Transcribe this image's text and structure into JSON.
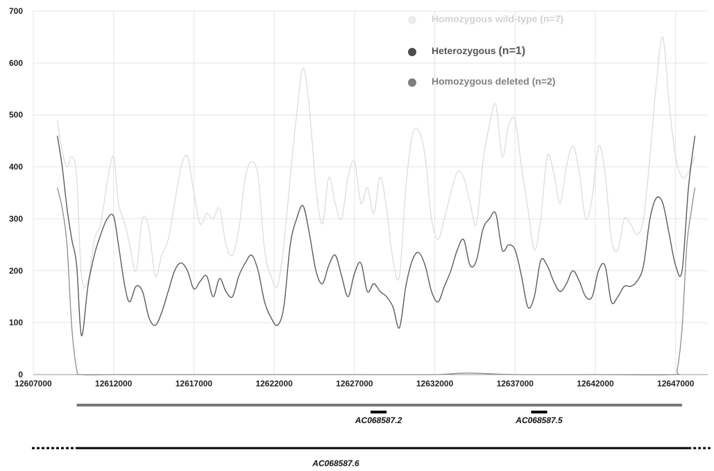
{
  "chart_data": {
    "type": "line",
    "title": "",
    "xlabel": "",
    "ylabel": "",
    "xlim": [
      12607000,
      12649000
    ],
    "ylim": [
      0,
      700
    ],
    "grid": true,
    "legend_position": "top-right",
    "y_ticks": [
      0,
      100,
      200,
      300,
      400,
      500,
      600,
      700
    ],
    "x_ticks": [
      12607000,
      12612000,
      12617000,
      12622000,
      12627000,
      12632000,
      12637000,
      12642000,
      12647000
    ],
    "series": [
      {
        "name": "Homozygous wild-type (n=7)",
        "color": "#dcdcdc",
        "x": [
          12608500,
          12608800,
          12609100,
          12609400,
          12609700,
          12610000,
          12610400,
          12610800,
          12611200,
          12611600,
          12612000,
          12612300,
          12612700,
          12613000,
          12613400,
          12613800,
          12614200,
          12614600,
          12615000,
          12615400,
          12615800,
          12616200,
          12616600,
          12617000,
          12617400,
          12617800,
          12618200,
          12618600,
          12619000,
          12619400,
          12619800,
          12620200,
          12620600,
          12621000,
          12621400,
          12621800,
          12622200,
          12622600,
          12623000,
          12623400,
          12623800,
          12624200,
          12624600,
          12625000,
          12625400,
          12625800,
          12626200,
          12626600,
          12627000,
          12627400,
          12627800,
          12628200,
          12628600,
          12629000,
          12629400,
          12629800,
          12630200,
          12630600,
          12631000,
          12631400,
          12631800,
          12632200,
          12632600,
          12633000,
          12633400,
          12633800,
          12634200,
          12634600,
          12635000,
          12635400,
          12635800,
          12636200,
          12636600,
          12637000,
          12637400,
          12637800,
          12638200,
          12638600,
          12639000,
          12639400,
          12639800,
          12640200,
          12640600,
          12641000,
          12641400,
          12641800,
          12642200,
          12642600,
          12643000,
          12643400,
          12643800,
          12644200,
          12644600,
          12645000,
          12645400,
          12645800,
          12646200,
          12646600,
          12647000,
          12647400,
          12647800,
          12648200
        ],
        "y": [
          490,
          430,
          400,
          420,
          380,
          190,
          180,
          260,
          290,
          370,
          420,
          330,
          290,
          250,
          200,
          300,
          280,
          190,
          230,
          260,
          330,
          400,
          420,
          350,
          290,
          310,
          300,
          320,
          250,
          230,
          280,
          380,
          410,
          380,
          240,
          190,
          170,
          250,
          380,
          500,
          590,
          510,
          360,
          290,
          380,
          330,
          300,
          380,
          410,
          330,
          360,
          310,
          380,
          320,
          220,
          190,
          360,
          460,
          470,
          420,
          300,
          260,
          300,
          350,
          390,
          380,
          330,
          290,
          410,
          480,
          520,
          420,
          480,
          490,
          400,
          320,
          240,
          300,
          420,
          390,
          330,
          400,
          440,
          390,
          300,
          340,
          440,
          390,
          260,
          240,
          300,
          290,
          270,
          300,
          420,
          560,
          650,
          520,
          420,
          380,
          390,
          420
        ]
      },
      {
        "name": "Heterozygous (n=1)",
        "color": "#5a5a5a",
        "x": [
          12608500,
          12608800,
          12609100,
          12609400,
          12609700,
          12610000,
          12610400,
          12610800,
          12611200,
          12611600,
          12612000,
          12612300,
          12612700,
          12613000,
          12613400,
          12613800,
          12614200,
          12614600,
          12615000,
          12615400,
          12615800,
          12616200,
          12616600,
          12617000,
          12617400,
          12617800,
          12618200,
          12618600,
          12619000,
          12619400,
          12619800,
          12620200,
          12620600,
          12621000,
          12621400,
          12621800,
          12622200,
          12622600,
          12623000,
          12623400,
          12623800,
          12624200,
          12624600,
          12625000,
          12625400,
          12625800,
          12626200,
          12626600,
          12627000,
          12627400,
          12627800,
          12628200,
          12628600,
          12629000,
          12629400,
          12629800,
          12630200,
          12630600,
          12631000,
          12631400,
          12631800,
          12632200,
          12632600,
          12633000,
          12633400,
          12633800,
          12634200,
          12634600,
          12635000,
          12635400,
          12635800,
          12636200,
          12636600,
          12637000,
          12637400,
          12637800,
          12638200,
          12638600,
          12639000,
          12639400,
          12639800,
          12640200,
          12640600,
          12641000,
          12641400,
          12641800,
          12642200,
          12642600,
          12643000,
          12643400,
          12643800,
          12644200,
          12644600,
          12645000,
          12645400,
          12645800,
          12646200,
          12646600,
          12647000,
          12647400,
          12647800,
          12648200
        ],
        "y": [
          460,
          400,
          320,
          260,
          210,
          75,
          170,
          230,
          270,
          300,
          305,
          250,
          170,
          140,
          170,
          160,
          110,
          95,
          120,
          160,
          200,
          215,
          200,
          165,
          180,
          190,
          150,
          185,
          160,
          150,
          190,
          215,
          230,
          200,
          140,
          110,
          95,
          130,
          250,
          300,
          325,
          270,
          200,
          175,
          210,
          230,
          190,
          150,
          195,
          215,
          160,
          175,
          160,
          150,
          130,
          90,
          170,
          220,
          235,
          210,
          160,
          140,
          170,
          200,
          240,
          260,
          210,
          220,
          280,
          300,
          310,
          240,
          250,
          240,
          190,
          130,
          150,
          220,
          210,
          180,
          160,
          175,
          200,
          180,
          150,
          150,
          200,
          210,
          140,
          150,
          170,
          170,
          180,
          210,
          300,
          340,
          330,
          270,
          210,
          200,
          360,
          460
        ]
      },
      {
        "name": "Homozygous deleted (n=2)",
        "color": "#8c8c8c",
        "x": [
          12608500,
          12608800,
          12609100,
          12609400,
          12609700,
          12610000,
          12612000,
          12617000,
          12622000,
          12627000,
          12632000,
          12634000,
          12637000,
          12642000,
          12646800,
          12647100,
          12647400,
          12647700,
          12648000,
          12648200
        ],
        "y": [
          360,
          320,
          250,
          90,
          10,
          0,
          0,
          0,
          0,
          0,
          0,
          3,
          0,
          0,
          0,
          10,
          90,
          250,
          320,
          360
        ]
      }
    ],
    "legend": [
      {
        "label_prefix": "Homozygous wild-type ",
        "label_suffix": "(n=7)",
        "color": "#ececec",
        "text_color": "#d2d2d2"
      },
      {
        "label_prefix": "Heterozygous ",
        "label_suffix": "(n=1)",
        "color": "#4d4d4d",
        "text_color": "#555555"
      },
      {
        "label_prefix": "Homozygous deleted ",
        "label_suffix": "(n=2)",
        "color": "#7d7d7d",
        "text_color": "#808080"
      }
    ],
    "tracks": [
      {
        "label": "",
        "start": 12609700,
        "end": 12647400,
        "color": "#777777",
        "style": "solid"
      },
      {
        "label": "AC068587.2",
        "start": 12628000,
        "end": 12629000,
        "color": "#000000",
        "style": "solid"
      },
      {
        "label": "AC068587.5",
        "start": 12638000,
        "end": 12639000,
        "color": "#000000",
        "style": "solid"
      },
      {
        "label": "AC068587.6",
        "start": 12609700,
        "end": 12647800,
        "color": "#000000",
        "style": "solid-dotted-ends"
      }
    ]
  }
}
